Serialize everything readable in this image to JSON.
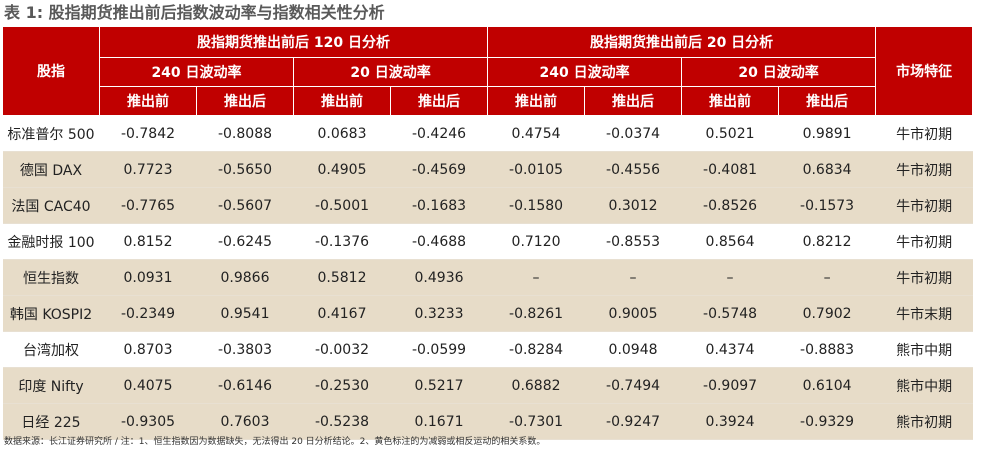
{
  "title": "表 1: 股指期货推出前后指数波动率与指数相关性分析",
  "header": {
    "index_col": "股指",
    "market_col": "市场特征",
    "group120": "股指期货推出前后 120 日分析",
    "group20": "股指期货推出前后 20 日分析",
    "vol240": "240 日波动率",
    "vol20": "20 日波动率",
    "before": "推出前",
    "after": "推出后"
  },
  "rows": [
    {
      "name": "标准普尔 500",
      "c1": "-0.7842",
      "c2": "-0.8088",
      "c3": "0.0683",
      "c4": "-0.4246",
      "c5": "0.4754",
      "c6": "-0.0374",
      "c7": "0.5021",
      "c8": "0.9891",
      "market": "牛市初期"
    },
    {
      "name": "德国 DAX",
      "c1": "0.7723",
      "c2": "-0.5650",
      "c3": "0.4905",
      "c4": "-0.4569",
      "c5": "-0.0105",
      "c6": "-0.4556",
      "c7": "-0.4081",
      "c8": "0.6834",
      "market": "牛市初期"
    },
    {
      "name": "法国 CAC40",
      "c1": "-0.7765",
      "c2": "-0.5607",
      "c3": "-0.5001",
      "c4": "-0.1683",
      "c5": "-0.1580",
      "c6": "0.3012",
      "c7": "-0.8526",
      "c8": "-0.1573",
      "market": "牛市初期"
    },
    {
      "name": "金融时报 100",
      "c1": "0.8152",
      "c2": "-0.6245",
      "c3": "-0.1376",
      "c4": "-0.4688",
      "c5": "0.7120",
      "c6": "-0.8553",
      "c7": "0.8564",
      "c8": "0.8212",
      "market": "牛市初期"
    },
    {
      "name": "恒生指数",
      "c1": "0.0931",
      "c2": "0.9866",
      "c3": "0.5812",
      "c4": "0.4936",
      "c5": "–",
      "c6": "–",
      "c7": "–",
      "c8": "–",
      "market": "牛市初期"
    },
    {
      "name": "韩国 KOSPI2",
      "c1": "-0.2349",
      "c2": "0.9541",
      "c3": "0.4167",
      "c4": "0.3233",
      "c5": "-0.8261",
      "c6": "0.9005",
      "c7": "-0.5748",
      "c8": "0.7902",
      "market": "牛市末期"
    },
    {
      "name": "台湾加权",
      "c1": "0.8703",
      "c2": "-0.3803",
      "c3": "-0.0032",
      "c4": "-0.0599",
      "c5": "-0.8284",
      "c6": "0.0948",
      "c7": "0.4374",
      "c8": "-0.8883",
      "market": "熊市中期"
    },
    {
      "name": "印度 Nifty",
      "c1": "0.4075",
      "c2": "-0.6146",
      "c3": "-0.2530",
      "c4": "0.5217",
      "c5": "0.6882",
      "c6": "-0.7494",
      "c7": "-0.9097",
      "c8": "0.6104",
      "market": "熊市中期"
    },
    {
      "name": "日经 225",
      "c1": "-0.9305",
      "c2": "0.7603",
      "c3": "-0.5238",
      "c4": "0.1671",
      "c5": "-0.7301",
      "c6": "-0.9247",
      "c7": "0.3924",
      "c8": "-0.9329",
      "market": "熊市初期"
    }
  ],
  "footer": "数据来源：长江证券研究所 / 注：1、恒生指数因为数据缺失，无法得出 20 日分析结论。2、黄色标注的为减弱或相反运动的相关系数。"
}
